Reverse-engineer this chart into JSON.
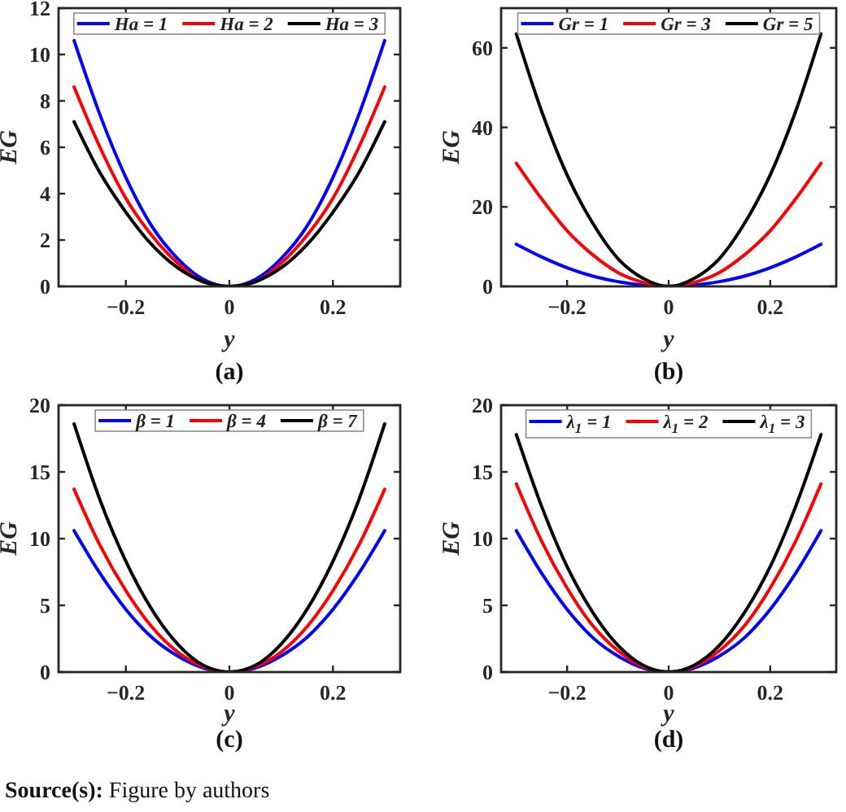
{
  "chart_data": [
    {
      "type": "line",
      "title": "(a)",
      "xlabel": "y",
      "ylabel": "EG",
      "legend": "top",
      "x": [
        -0.3,
        -0.25,
        -0.2,
        -0.15,
        -0.1,
        -0.05,
        0,
        0.05,
        0.1,
        0.15,
        0.2,
        0.25,
        0.3
      ],
      "xlim": [
        -0.33,
        0.33
      ],
      "xticks": [
        -0.2,
        0,
        0.2
      ],
      "ylim": [
        0,
        12
      ],
      "yticks": [
        0,
        2,
        4,
        6,
        8,
        10,
        12
      ],
      "series": [
        {
          "name": "Ha = 1",
          "color": "#0000ff",
          "values": [
            10.6,
            7.4,
            4.7,
            2.6,
            1.2,
            0.3,
            0,
            0.3,
            1.2,
            2.6,
            4.7,
            7.4,
            10.6
          ]
        },
        {
          "name": "Ha = 2",
          "color": "#ff0000",
          "values": [
            8.6,
            6,
            3.8,
            2.2,
            1,
            0.2,
            0,
            0.2,
            1,
            2.2,
            3.8,
            6,
            8.6
          ]
        },
        {
          "name": "Ha = 3",
          "color": "#000000",
          "values": [
            7.1,
            4.9,
            3.2,
            1.8,
            0.8,
            0.2,
            0,
            0.2,
            0.8,
            1.8,
            3.2,
            4.9,
            7.1
          ]
        }
      ]
    },
    {
      "type": "line",
      "title": "(b)",
      "xlabel": "y",
      "ylabel": "EG",
      "legend": "top",
      "x": [
        -0.3,
        -0.25,
        -0.2,
        -0.15,
        -0.1,
        -0.05,
        0,
        0.05,
        0.1,
        0.15,
        0.2,
        0.25,
        0.3
      ],
      "xlim": [
        -0.33,
        0.33
      ],
      "xticks": [
        -0.2,
        0,
        0.2
      ],
      "ylim": [
        0,
        70
      ],
      "yticks": [
        0,
        20,
        40,
        60
      ],
      "series": [
        {
          "name": "Gr = 1",
          "color": "#0000ff",
          "values": [
            10.6,
            7.4,
            4.7,
            2.6,
            1.2,
            0.3,
            0,
            0.3,
            1.2,
            2.6,
            4.7,
            7.4,
            10.6
          ]
        },
        {
          "name": "Gr = 3",
          "color": "#ff0000",
          "values": [
            31,
            22,
            14,
            8,
            3.5,
            1,
            0,
            1,
            3.5,
            8,
            14,
            22,
            31
          ]
        },
        {
          "name": "Gr = 5",
          "color": "#000000",
          "values": [
            63.5,
            44,
            28,
            16,
            7,
            2,
            0,
            2,
            7,
            16,
            28,
            44,
            63.5
          ]
        }
      ]
    },
    {
      "type": "line",
      "title": "(c)",
      "xlabel": "y",
      "ylabel": "EG",
      "legend": "top",
      "x": [
        -0.3,
        -0.25,
        -0.2,
        -0.15,
        -0.1,
        -0.05,
        0,
        0.05,
        0.1,
        0.15,
        0.2,
        0.25,
        0.3
      ],
      "xlim": [
        -0.33,
        0.33
      ],
      "xticks": [
        -0.2,
        0,
        0.2
      ],
      "ylim": [
        0,
        20
      ],
      "yticks": [
        0,
        5,
        10,
        15,
        20
      ],
      "series": [
        {
          "name": "β = 1",
          "color": "#0000ff",
          "values": [
            10.6,
            7.4,
            4.7,
            2.6,
            1.2,
            0.3,
            0,
            0.3,
            1.2,
            2.6,
            4.7,
            7.4,
            10.6
          ]
        },
        {
          "name": "β = 4",
          "color": "#ff0000",
          "values": [
            13.7,
            9.5,
            6.1,
            3.4,
            1.5,
            0.4,
            0,
            0.4,
            1.5,
            3.4,
            6.1,
            9.5,
            13.7
          ]
        },
        {
          "name": "β = 7",
          "color": "#000000",
          "values": [
            18.6,
            12.9,
            8.3,
            4.7,
            2.1,
            0.5,
            0,
            0.5,
            2.1,
            4.7,
            8.3,
            12.9,
            18.6
          ]
        }
      ]
    },
    {
      "type": "line",
      "title": "(d)",
      "xlabel": "y",
      "ylabel": "EG",
      "legend": "top",
      "x": [
        -0.3,
        -0.25,
        -0.2,
        -0.15,
        -0.1,
        -0.05,
        0,
        0.05,
        0.1,
        0.15,
        0.2,
        0.25,
        0.3
      ],
      "xlim": [
        -0.33,
        0.33
      ],
      "xticks": [
        -0.2,
        0,
        0.2
      ],
      "ylim": [
        0,
        20
      ],
      "yticks": [
        0,
        5,
        10,
        15,
        20
      ],
      "series": [
        {
          "name": "λ$_{1}$ = 1",
          "color": "#0000ff",
          "values": [
            10.6,
            7.4,
            4.7,
            2.6,
            1.2,
            0.3,
            0,
            0.3,
            1.2,
            2.6,
            4.7,
            7.4,
            10.6
          ]
        },
        {
          "name": "λ$_{1}$ = 2",
          "color": "#ff0000",
          "values": [
            14.1,
            9.8,
            6.3,
            3.5,
            1.6,
            0.4,
            0,
            0.4,
            1.6,
            3.5,
            6.3,
            9.8,
            14.1
          ]
        },
        {
          "name": "λ$_{1}$ = 3",
          "color": "#000000",
          "values": [
            17.8,
            12.4,
            7.9,
            4.5,
            2,
            0.5,
            0,
            0.5,
            2,
            4.5,
            7.9,
            12.4,
            17.8
          ]
        }
      ],
      "annotations": [
        "Source(s): Figure by authors"
      ]
    }
  ]
}
